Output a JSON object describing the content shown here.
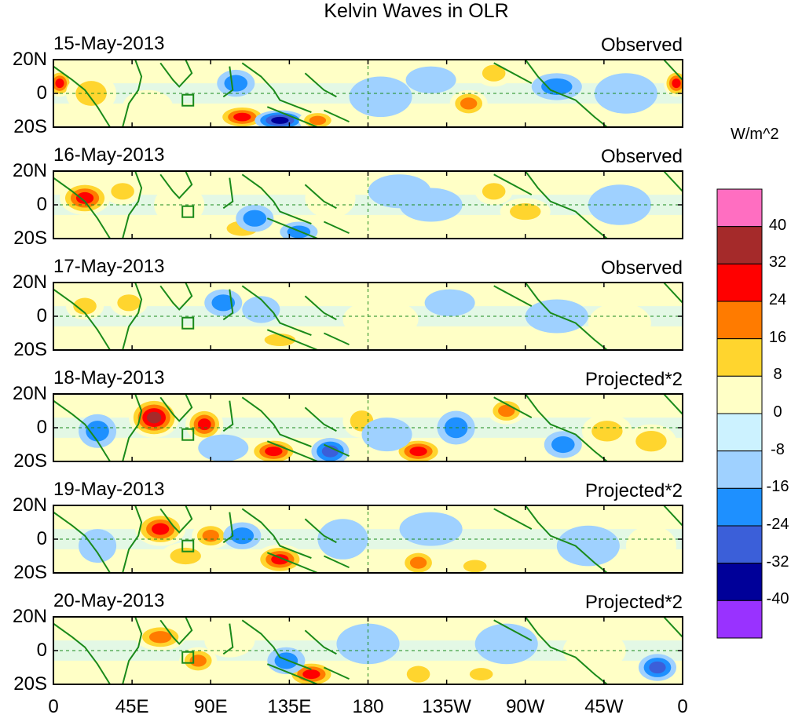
{
  "title": "Kelvin Waves in OLR",
  "panels": [
    {
      "date": "15-May-2013",
      "tag": "Observed"
    },
    {
      "date": "16-May-2013",
      "tag": "Observed"
    },
    {
      "date": "17-May-2013",
      "tag": "Observed"
    },
    {
      "date": "18-May-2013",
      "tag": "Projected*2"
    },
    {
      "date": "19-May-2013",
      "tag": "Projected*2"
    },
    {
      "date": "20-May-2013",
      "tag": "Projected*2"
    }
  ],
  "y_ticks": [
    "20N",
    "0",
    "20S"
  ],
  "x_ticks": [
    "0",
    "45E",
    "90E",
    "135E",
    "180",
    "135W",
    "90W",
    "45W",
    "0"
  ],
  "colorbar": {
    "unit": "W/m^2",
    "labels": [
      "40",
      "32",
      "24",
      "16",
      "8",
      "0",
      "-8",
      "-16",
      "-24",
      "-32",
      "-40"
    ],
    "colors": [
      "#ff6ec1",
      "#a52a2a",
      "#ff0000",
      "#ff7b00",
      "#ffd52e",
      "#ffffc6",
      "#ccf2ff",
      "#9fd1ff",
      "#1e90ff",
      "#3b5fd9",
      "#000099",
      "#9932ff"
    ]
  },
  "blobs": [
    [
      [
        0.01,
        0.35,
        0.02,
        0.2,
        4
      ],
      [
        0.06,
        0.5,
        0.04,
        0.3,
        2
      ],
      [
        0.29,
        0.35,
        0.03,
        0.2,
        -2
      ],
      [
        0.3,
        0.85,
        0.04,
        0.18,
        4
      ],
      [
        0.36,
        0.9,
        0.04,
        0.15,
        -4
      ],
      [
        0.42,
        0.9,
        0.03,
        0.15,
        3
      ],
      [
        0.66,
        0.65,
        0.03,
        0.2,
        3
      ],
      [
        0.8,
        0.4,
        0.04,
        0.2,
        -2
      ],
      [
        0.7,
        0.2,
        0.03,
        0.2,
        2
      ],
      [
        0.99,
        0.35,
        0.02,
        0.2,
        4
      ],
      [
        0.52,
        0.55,
        0.05,
        0.3,
        -1
      ],
      [
        0.91,
        0.5,
        0.05,
        0.3,
        -1
      ],
      [
        0.15,
        0.7,
        0.04,
        0.25,
        1
      ],
      [
        0.6,
        0.3,
        0.04,
        0.2,
        -1
      ]
    ],
    [
      [
        0.05,
        0.4,
        0.04,
        0.25,
        4
      ],
      [
        0.11,
        0.3,
        0.03,
        0.2,
        2
      ],
      [
        0.3,
        0.85,
        0.04,
        0.18,
        2
      ],
      [
        0.32,
        0.7,
        0.03,
        0.2,
        -2
      ],
      [
        0.39,
        0.9,
        0.03,
        0.15,
        -2
      ],
      [
        0.7,
        0.3,
        0.03,
        0.2,
        2
      ],
      [
        0.75,
        0.6,
        0.04,
        0.2,
        2
      ],
      [
        0.6,
        0.5,
        0.05,
        0.25,
        -1
      ],
      [
        0.55,
        0.3,
        0.05,
        0.25,
        -1
      ],
      [
        0.9,
        0.5,
        0.05,
        0.3,
        -1
      ],
      [
        0.2,
        0.5,
        0.04,
        0.3,
        1
      ],
      [
        0.44,
        0.4,
        0.04,
        0.3,
        1
      ]
    ],
    [
      [
        0.05,
        0.35,
        0.03,
        0.2,
        2
      ],
      [
        0.12,
        0.3,
        0.03,
        0.2,
        2
      ],
      [
        0.27,
        0.3,
        0.03,
        0.2,
        -2
      ],
      [
        0.36,
        0.85,
        0.04,
        0.15,
        2
      ],
      [
        0.33,
        0.4,
        0.03,
        0.2,
        -1
      ],
      [
        0.63,
        0.3,
        0.04,
        0.2,
        -1
      ],
      [
        0.8,
        0.5,
        0.05,
        0.25,
        -1
      ],
      [
        0.52,
        0.55,
        0.06,
        0.3,
        1
      ],
      [
        0.9,
        0.6,
        0.05,
        0.3,
        1
      ]
    ],
    [
      [
        0.16,
        0.35,
        0.04,
        0.3,
        5
      ],
      [
        0.24,
        0.45,
        0.03,
        0.25,
        4
      ],
      [
        0.07,
        0.55,
        0.03,
        0.25,
        -2
      ],
      [
        0.35,
        0.85,
        0.04,
        0.2,
        4
      ],
      [
        0.44,
        0.85,
        0.03,
        0.2,
        -3
      ],
      [
        0.58,
        0.85,
        0.04,
        0.2,
        4
      ],
      [
        0.64,
        0.5,
        0.03,
        0.25,
        -2
      ],
      [
        0.72,
        0.25,
        0.03,
        0.2,
        3
      ],
      [
        0.81,
        0.75,
        0.03,
        0.2,
        -2
      ],
      [
        0.88,
        0.55,
        0.04,
        0.25,
        2
      ],
      [
        0.95,
        0.7,
        0.04,
        0.25,
        2
      ],
      [
        0.49,
        0.4,
        0.03,
        0.25,
        2
      ],
      [
        0.53,
        0.6,
        0.04,
        0.25,
        -1
      ],
      [
        0.27,
        0.8,
        0.04,
        0.2,
        -1
      ]
    ],
    [
      [
        0.17,
        0.35,
        0.04,
        0.25,
        4
      ],
      [
        0.25,
        0.45,
        0.03,
        0.2,
        3
      ],
      [
        0.07,
        0.6,
        0.03,
        0.25,
        -1
      ],
      [
        0.36,
        0.8,
        0.04,
        0.22,
        4
      ],
      [
        0.3,
        0.45,
        0.03,
        0.2,
        -2
      ],
      [
        0.58,
        0.85,
        0.03,
        0.2,
        3
      ],
      [
        0.67,
        0.9,
        0.03,
        0.15,
        2
      ],
      [
        0.46,
        0.5,
        0.04,
        0.3,
        -1
      ],
      [
        0.6,
        0.35,
        0.05,
        0.25,
        -1
      ],
      [
        0.85,
        0.6,
        0.05,
        0.3,
        -1
      ],
      [
        0.95,
        0.6,
        0.04,
        0.3,
        1
      ],
      [
        0.21,
        0.75,
        0.04,
        0.2,
        2
      ]
    ],
    [
      [
        0.17,
        0.3,
        0.04,
        0.2,
        3
      ],
      [
        0.23,
        0.65,
        0.03,
        0.2,
        3
      ],
      [
        0.41,
        0.85,
        0.04,
        0.2,
        4
      ],
      [
        0.37,
        0.65,
        0.03,
        0.2,
        -2
      ],
      [
        0.58,
        0.85,
        0.03,
        0.2,
        2
      ],
      [
        0.68,
        0.85,
        0.03,
        0.15,
        2
      ],
      [
        0.96,
        0.75,
        0.03,
        0.2,
        -3
      ],
      [
        0.5,
        0.4,
        0.05,
        0.3,
        -1
      ],
      [
        0.72,
        0.4,
        0.05,
        0.3,
        -1
      ],
      [
        0.86,
        0.5,
        0.05,
        0.3,
        1
      ],
      [
        0.28,
        0.35,
        0.04,
        0.25,
        1
      ]
    ]
  ]
}
